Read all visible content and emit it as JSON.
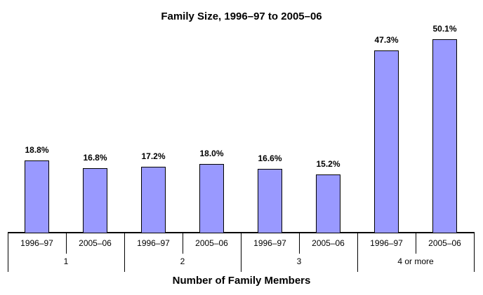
{
  "chart_data": {
    "type": "bar",
    "title": "Family Size, 1996–97 to 2005–06",
    "xlabel": "Number of Family Members",
    "ylabel": "",
    "unit": "%",
    "ylim": [
      0,
      56
    ],
    "grid": false,
    "legend": "none",
    "bar_color": "#9999FF",
    "bar_border_color": "#000000",
    "axis_color": "#000000",
    "background_color": "#FFFFFF",
    "categories": [
      "1",
      "2",
      "3",
      "4 or more"
    ],
    "series": [
      {
        "name": "1996–97",
        "values": [
          18.8,
          17.2,
          16.6,
          47.3
        ]
      },
      {
        "name": "2005–06",
        "values": [
          16.8,
          18.0,
          15.2,
          50.1
        ]
      }
    ],
    "groups": [
      {
        "category": "1",
        "bars": [
          {
            "series": "1996–97",
            "value": 18.8,
            "label": "18.8%"
          },
          {
            "series": "2005–06",
            "value": 16.8,
            "label": "16.8%"
          }
        ]
      },
      {
        "category": "2",
        "bars": [
          {
            "series": "1996–97",
            "value": 17.2,
            "label": "17.2%"
          },
          {
            "series": "2005–06",
            "value": 18.0,
            "label": "18.0%"
          }
        ]
      },
      {
        "category": "3",
        "bars": [
          {
            "series": "1996–97",
            "value": 16.6,
            "label": "16.6%"
          },
          {
            "series": "2005–06",
            "value": 15.2,
            "label": "15.2%"
          }
        ]
      },
      {
        "category": "4 or more",
        "bars": [
          {
            "series": "1996–97",
            "value": 47.3,
            "label": "47.3%"
          },
          {
            "series": "2005–06",
            "value": 50.1,
            "label": "50.1%"
          }
        ]
      }
    ]
  }
}
